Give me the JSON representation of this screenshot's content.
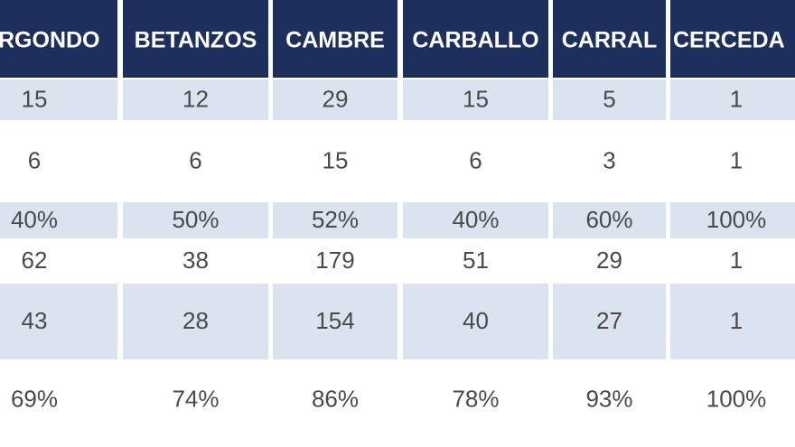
{
  "table": {
    "header": [
      "RGONDO",
      "BETANZOS",
      "CAMBRE",
      "CARBALLO",
      "CARRAL",
      "CERCEDA"
    ],
    "rows": [
      [
        "15",
        "12",
        "29",
        "15",
        "5",
        "1"
      ],
      [
        "6",
        "6",
        "15",
        "6",
        "3",
        "1"
      ],
      [
        "40%",
        "50%",
        "52%",
        "40%",
        "60%",
        "100%"
      ],
      [
        "62",
        "38",
        "179",
        "51",
        "29",
        "1"
      ],
      [
        "43",
        "28",
        "154",
        "40",
        "27",
        "1"
      ],
      [
        "69%",
        "74%",
        "86%",
        "78%",
        "93%",
        "100%"
      ]
    ]
  }
}
